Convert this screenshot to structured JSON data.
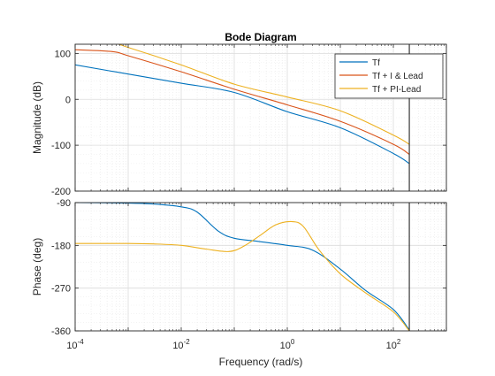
{
  "chart_data": {
    "type": "line",
    "title": "Bode Diagram",
    "xlabel": "Frequency  (rad/s)",
    "x_scale": "log",
    "xlim": [
      0.0001,
      1000
    ],
    "x_ticks": [
      {
        "value": 0.0001,
        "base": "10",
        "exp": "-4"
      },
      {
        "value": 0.01,
        "base": "10",
        "exp": "-2"
      },
      {
        "value": 1,
        "base": "10",
        "exp": "0"
      },
      {
        "value": 100,
        "base": "10",
        "exp": "2"
      }
    ],
    "marker_line_x": 200,
    "legend_location": "top-right",
    "colors": {
      "tf": "#0072bd",
      "i_lead": "#d95319",
      "pi_lead": "#edb120",
      "axis": "#262626",
      "grid": "#dcdcdc",
      "marker": "#262626"
    },
    "magnitude": {
      "ylabel": "Magnitude (dB)",
      "ylim": [
        -200,
        120
      ],
      "yticks": [
        100,
        0,
        -100,
        -200
      ],
      "ytick_labels": [
        "100",
        "0",
        "-100",
        "-200"
      ],
      "series": [
        {
          "name": "Tf",
          "color": "#0072bd",
          "x": [
            0.0001,
            0.001,
            0.01,
            0.1,
            1,
            10,
            100,
            200
          ],
          "y": [
            75,
            55,
            35,
            15,
            -27,
            -62,
            -118,
            -140
          ]
        },
        {
          "name": "Tf + I & Lead",
          "color": "#d95319",
          "x": [
            0.0001,
            0.0005,
            0.001,
            0.01,
            0.1,
            1,
            10,
            100,
            200
          ],
          "y": [
            108,
            104,
            95,
            60,
            22,
            -12,
            -48,
            -98,
            -120
          ]
        },
        {
          "name": "Tf + PI-Lead",
          "color": "#edb120",
          "x": [
            0.0001,
            0.0005,
            0.001,
            0.01,
            0.1,
            1,
            10,
            100,
            200
          ],
          "y": [
            125,
            122,
            113,
            75,
            33,
            5,
            -25,
            -78,
            -98
          ]
        }
      ]
    },
    "phase": {
      "ylabel": "Phase (deg)",
      "ylim": [
        -360,
        -90
      ],
      "yticks": [
        -90,
        -180,
        -270,
        -360
      ],
      "ytick_labels": [
        "-90",
        "-180",
        "-270",
        "-360"
      ],
      "series": [
        {
          "name": "Tf",
          "color": "#0072bd",
          "x": [
            0.0001,
            0.001,
            0.003,
            0.01,
            0.02,
            0.05,
            0.1,
            0.3,
            1,
            3,
            10,
            30,
            100,
            200
          ],
          "y": [
            -90,
            -91,
            -93,
            -99,
            -110,
            -150,
            -165,
            -172,
            -180,
            -190,
            -230,
            -275,
            -315,
            -358
          ]
        },
        {
          "name": "Tf + PI-Lead",
          "color": "#edb120",
          "x": [
            0.0001,
            0.001,
            0.003,
            0.01,
            0.03,
            0.08,
            0.15,
            0.3,
            0.6,
            1.2,
            2,
            4,
            10,
            30,
            100,
            200
          ],
          "y": [
            -176,
            -176,
            -177,
            -180,
            -188,
            -193,
            -182,
            -160,
            -137,
            -130,
            -140,
            -190,
            -240,
            -280,
            -320,
            -360
          ]
        }
      ]
    }
  }
}
